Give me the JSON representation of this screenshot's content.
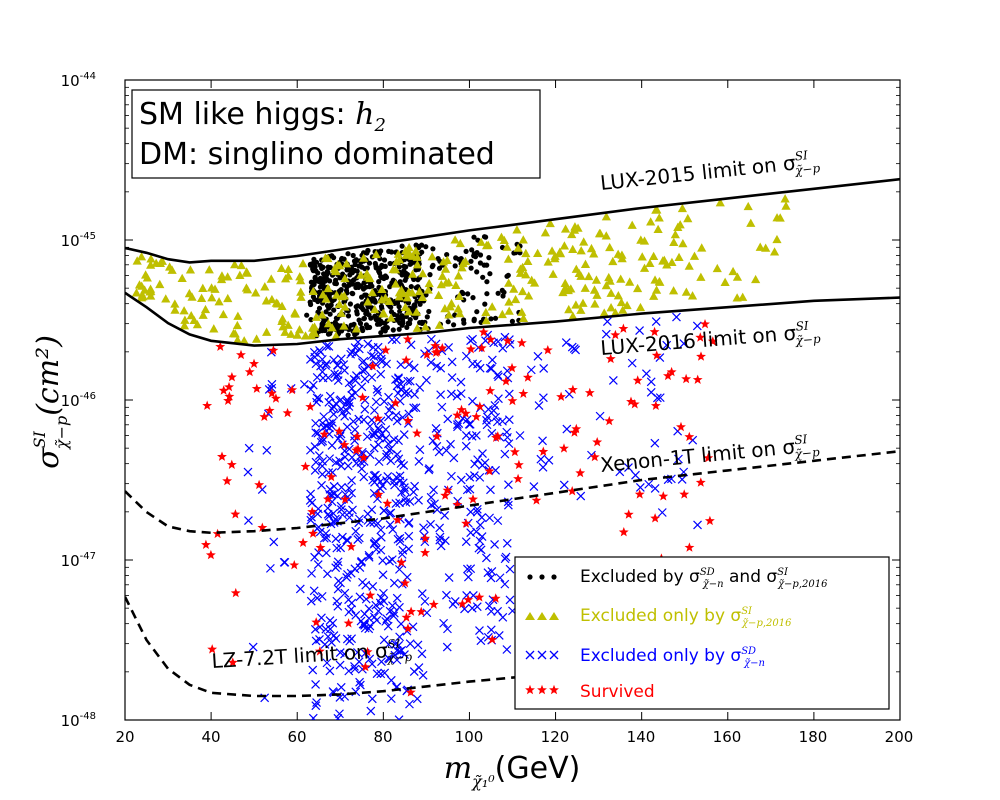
{
  "chart_data": {
    "type": "scatter",
    "xlabel_main": "m",
    "xlabel_sub": "χ̃₁⁰",
    "xlabel_unit": "(GeV)",
    "ylabel_main": "σ",
    "ylabel_sup": "SI",
    "ylabel_sub": "χ̃−p",
    "ylabel_unit": "(cm²)",
    "xlim": [
      20,
      200
    ],
    "ylim_log10": [
      -48,
      -44
    ],
    "xticks": [
      "20",
      "40",
      "60",
      "80",
      "100",
      "120",
      "140",
      "160",
      "180",
      "200"
    ],
    "yticks": [
      {
        "base": "10",
        "exp": "-44"
      },
      {
        "base": "10",
        "exp": "-45"
      },
      {
        "base": "10",
        "exp": "-46"
      },
      {
        "base": "10",
        "exp": "-47"
      },
      {
        "base": "10",
        "exp": "-48"
      }
    ],
    "info_box": {
      "line1_text": "SM like higgs: ",
      "line1_math": "h",
      "line1_sub": "2",
      "line2": "DM: singlino dominated"
    },
    "limit_curves": [
      {
        "name": "LUX-2015",
        "label": "LUX-2015 limit on σ",
        "sup": "SI",
        "sub": "χ̃−p",
        "style": "solid",
        "x": [
          20,
          25,
          30,
          35,
          40,
          50,
          60,
          70,
          80,
          90,
          100,
          120,
          140,
          160,
          180,
          200
        ],
        "y_log10": [
          -45.05,
          -45.08,
          -45.12,
          -45.14,
          -45.13,
          -45.13,
          -45.1,
          -45.06,
          -45.02,
          -44.98,
          -44.94,
          -44.87,
          -44.8,
          -44.74,
          -44.68,
          -44.62
        ]
      },
      {
        "name": "LUX-2016",
        "label": "LUX-2016 limit on σ",
        "sup": "SI",
        "sub": "χ̃−p",
        "style": "solid",
        "x": [
          20,
          25,
          30,
          35,
          40,
          50,
          60,
          70,
          80,
          90,
          100,
          120,
          140,
          160,
          180,
          200
        ],
        "y_log10": [
          -45.33,
          -45.42,
          -45.52,
          -45.59,
          -45.63,
          -45.66,
          -45.65,
          -45.62,
          -45.6,
          -45.58,
          -45.55,
          -45.51,
          -45.46,
          -45.42,
          -45.38,
          -45.36
        ]
      },
      {
        "name": "Xenon-1T",
        "label": "Xenon-1T limit on σ",
        "sup": "SI",
        "sub": "χ̃−p",
        "style": "dashed",
        "x": [
          20,
          25,
          30,
          35,
          40,
          50,
          60,
          70,
          80,
          90,
          100,
          120,
          140,
          160,
          180,
          200
        ],
        "y_log10": [
          -46.57,
          -46.7,
          -46.79,
          -46.82,
          -46.83,
          -46.82,
          -46.8,
          -46.77,
          -46.74,
          -46.7,
          -46.66,
          -46.58,
          -46.5,
          -46.44,
          -46.38,
          -46.32
        ]
      },
      {
        "name": "LZ-7.2T",
        "label": "LZ-7.2T limit on σ",
        "sup": "SI",
        "sub": "χ̃−p",
        "style": "dashed",
        "x": [
          20,
          25,
          30,
          35,
          40,
          50,
          60,
          70,
          80,
          90,
          100,
          120
        ],
        "y_log10": [
          -47.23,
          -47.5,
          -47.68,
          -47.78,
          -47.83,
          -47.85,
          -47.85,
          -47.84,
          -47.82,
          -47.79,
          -47.76,
          -47.71
        ]
      }
    ],
    "series": [
      {
        "name": "Excluded by σSD and σSI,2016",
        "legend_prefix": "Excluded by σ",
        "legend_mid": " and σ",
        "legend_sup1": "SD",
        "legend_sub1": "χ̃−n",
        "legend_sup2": "SI",
        "legend_sub2": "χ̃−p,2016",
        "marker": "dot",
        "color": "#000000"
      },
      {
        "name": "Excluded only by σSI,2016",
        "legend_prefix": "Excluded only by σ",
        "legend_sup1": "SI",
        "legend_sub1": "χ̃−p,2016",
        "marker": "triangle",
        "color": "#bfbf00"
      },
      {
        "name": "Excluded only by σSD",
        "legend_prefix": "Excluded only by σ",
        "legend_sup1": "SD",
        "legend_sub1": "χ̃−n",
        "marker": "x",
        "color": "#0000ff"
      },
      {
        "name": "Survived",
        "legend_prefix": "Survived",
        "marker": "star",
        "color": "#ff0000"
      }
    ],
    "point_regions": [
      {
        "series": 0,
        "count": 520,
        "x": [
          62,
          110
        ],
        "band": "between LUX-2016 and LUX-2015",
        "dense_x": [
          62,
          90
        ]
      },
      {
        "series": 1,
        "count": 380,
        "x": [
          22,
          175
        ],
        "band": "between LUX-2016 and LUX-2015"
      },
      {
        "series": 2,
        "count": 700,
        "x": [
          62,
          155
        ],
        "y_log10_min": -48.0,
        "band": "below LUX-2016"
      },
      {
        "series": 3,
        "count": 160,
        "x": [
          38,
          158
        ],
        "y_log10_min": -47.9,
        "band": "below LUX-2016"
      }
    ]
  }
}
